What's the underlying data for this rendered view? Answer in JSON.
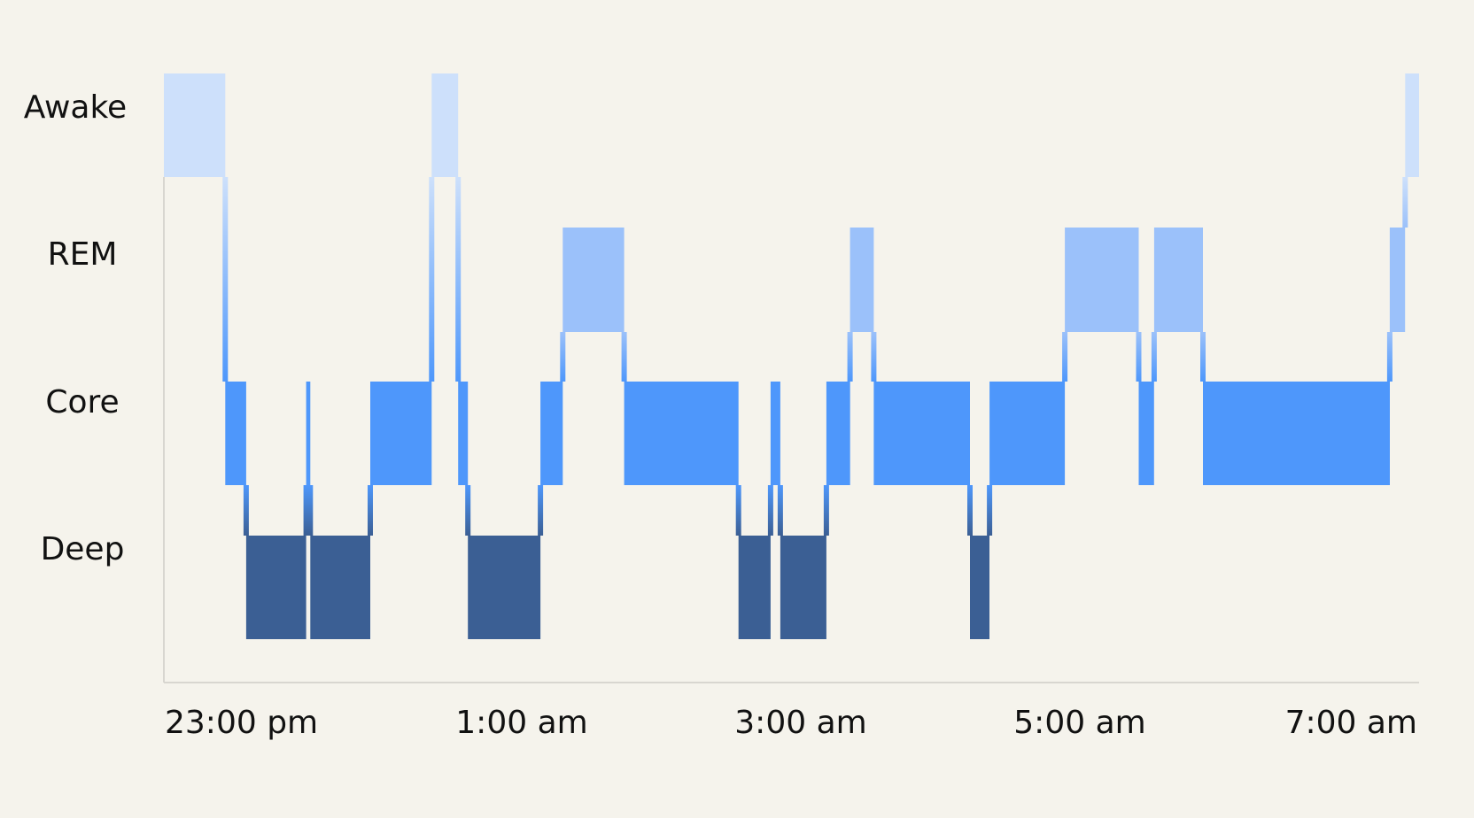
{
  "chart_data": {
    "type": "step",
    "title": "",
    "xlabel": "",
    "ylabel": "",
    "stages": [
      "Awake",
      "REM",
      "Core",
      "Deep"
    ],
    "x_ticks": [
      {
        "label": "23:00 pm",
        "hours": 0
      },
      {
        "label": "1:00 am",
        "hours": 2
      },
      {
        "label": "3:00 am",
        "hours": 4
      },
      {
        "label": "5:00 am",
        "hours": 6
      },
      {
        "label": "7:00 am",
        "hours": 8
      }
    ],
    "x_range_hours": [
      0,
      9
    ],
    "grid": false,
    "legend": "none",
    "colors": {
      "Awake": "#cde0fb",
      "REM": "#9bc1fa",
      "Core": "#4e97fb",
      "Deep": "#3b5f94",
      "background": "#f5f3ec",
      "axis": "#d8d6d0",
      "text": "#111111"
    },
    "segments": [
      {
        "stage": "Awake",
        "start": 0.0,
        "end": 0.44
      },
      {
        "stage": "Core",
        "start": 0.44,
        "end": 0.59
      },
      {
        "stage": "Deep",
        "start": 0.59,
        "end": 1.02
      },
      {
        "stage": "Core",
        "start": 1.02,
        "end": 1.05
      },
      {
        "stage": "Deep",
        "start": 1.05,
        "end": 1.48
      },
      {
        "stage": "Core",
        "start": 1.48,
        "end": 1.92
      },
      {
        "stage": "Awake",
        "start": 1.92,
        "end": 2.11
      },
      {
        "stage": "Core",
        "start": 2.11,
        "end": 2.18
      },
      {
        "stage": "Deep",
        "start": 2.18,
        "end": 2.7
      },
      {
        "stage": "Core",
        "start": 2.7,
        "end": 2.86
      },
      {
        "stage": "REM",
        "start": 2.86,
        "end": 3.3
      },
      {
        "stage": "Core",
        "start": 3.3,
        "end": 4.12
      },
      {
        "stage": "Deep",
        "start": 4.12,
        "end": 4.35
      },
      {
        "stage": "Core",
        "start": 4.35,
        "end": 4.42
      },
      {
        "stage": "Deep",
        "start": 4.42,
        "end": 4.75
      },
      {
        "stage": "Core",
        "start": 4.75,
        "end": 4.92
      },
      {
        "stage": "REM",
        "start": 4.92,
        "end": 5.09
      },
      {
        "stage": "Core",
        "start": 5.09,
        "end": 5.78
      },
      {
        "stage": "Deep",
        "start": 5.78,
        "end": 5.92
      },
      {
        "stage": "Core",
        "start": 5.92,
        "end": 6.46
      },
      {
        "stage": "REM",
        "start": 6.46,
        "end": 6.99
      },
      {
        "stage": "Core",
        "start": 6.99,
        "end": 7.1
      },
      {
        "stage": "REM",
        "start": 7.1,
        "end": 7.45
      },
      {
        "stage": "Core",
        "start": 7.45,
        "end": 8.79
      },
      {
        "stage": "REM",
        "start": 8.79,
        "end": 8.9
      },
      {
        "stage": "Awake",
        "start": 8.9,
        "end": 9.0
      }
    ]
  }
}
